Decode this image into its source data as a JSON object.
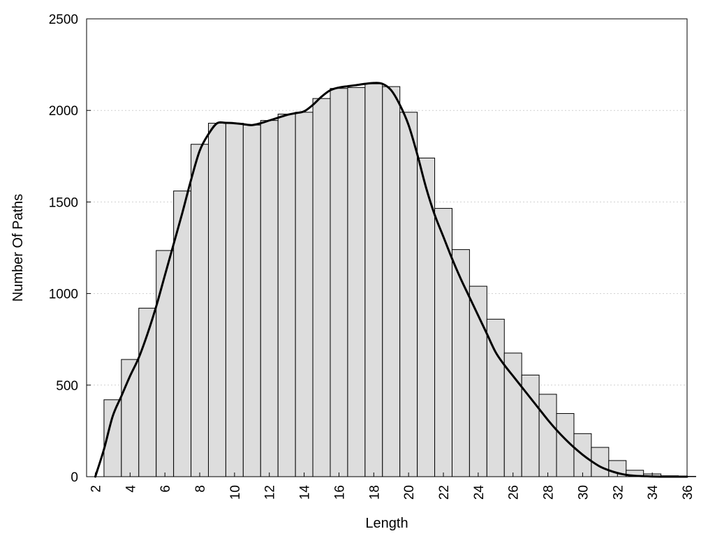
{
  "chart_data": {
    "type": "bar",
    "xlabel": "Length",
    "ylabel": "Number Of Paths",
    "xlim": [
      1.5,
      36
    ],
    "ylim": [
      0,
      2500
    ],
    "x_ticks": [
      2,
      4,
      6,
      8,
      10,
      12,
      14,
      16,
      18,
      20,
      22,
      24,
      26,
      28,
      30,
      32,
      34,
      36
    ],
    "y_ticks": [
      0,
      500,
      1000,
      1500,
      2000,
      2500
    ],
    "grid": "horizontal dotted",
    "legend": "none",
    "bar_color": "#dddddd",
    "bars": {
      "x": [
        3,
        4,
        5,
        6,
        7,
        8,
        9,
        10,
        11,
        12,
        13,
        14,
        15,
        16,
        17,
        18,
        19,
        20,
        21,
        22,
        23,
        24,
        25,
        26,
        27,
        28,
        29,
        30,
        31,
        32,
        33,
        34,
        35,
        36
      ],
      "values": [
        420,
        640,
        920,
        1235,
        1560,
        1815,
        1930,
        1930,
        1920,
        1945,
        1980,
        1990,
        2065,
        2120,
        2125,
        2145,
        2130,
        1990,
        1740,
        1465,
        1240,
        1040,
        860,
        675,
        555,
        450,
        345,
        235,
        160,
        88,
        35,
        15,
        5,
        2
      ]
    },
    "curve": {
      "x": [
        2,
        2.5,
        3,
        3.5,
        4,
        4.5,
        5,
        5.5,
        6,
        6.5,
        7,
        7.5,
        8,
        8.5,
        9,
        9.5,
        10,
        10.5,
        11,
        11.5,
        12,
        12.5,
        13,
        13.5,
        14,
        14.5,
        15,
        15.5,
        16,
        16.5,
        17,
        17.5,
        18,
        18.5,
        19,
        19.5,
        20,
        20.5,
        21,
        21.5,
        22,
        22.5,
        23,
        23.5,
        24,
        24.5,
        25,
        25.5,
        26,
        26.5,
        27,
        27.5,
        28,
        28.5,
        29,
        29.5,
        30,
        30.5,
        31,
        31.5,
        32,
        32.5,
        33,
        33.5,
        34,
        34.5,
        35,
        35.5,
        36
      ],
      "values": [
        0,
        150,
        330,
        440,
        550,
        650,
        780,
        930,
        1100,
        1270,
        1440,
        1620,
        1780,
        1870,
        1930,
        1932,
        1930,
        1925,
        1920,
        1930,
        1945,
        1960,
        1975,
        1985,
        1995,
        2030,
        2075,
        2110,
        2125,
        2132,
        2138,
        2145,
        2150,
        2145,
        2110,
        2030,
        1920,
        1760,
        1580,
        1430,
        1310,
        1190,
        1080,
        980,
        880,
        780,
        680,
        610,
        550,
        490,
        430,
        370,
        310,
        255,
        205,
        160,
        120,
        85,
        55,
        35,
        20,
        10,
        5,
        3,
        1,
        0,
        0,
        0,
        0
      ]
    }
  }
}
